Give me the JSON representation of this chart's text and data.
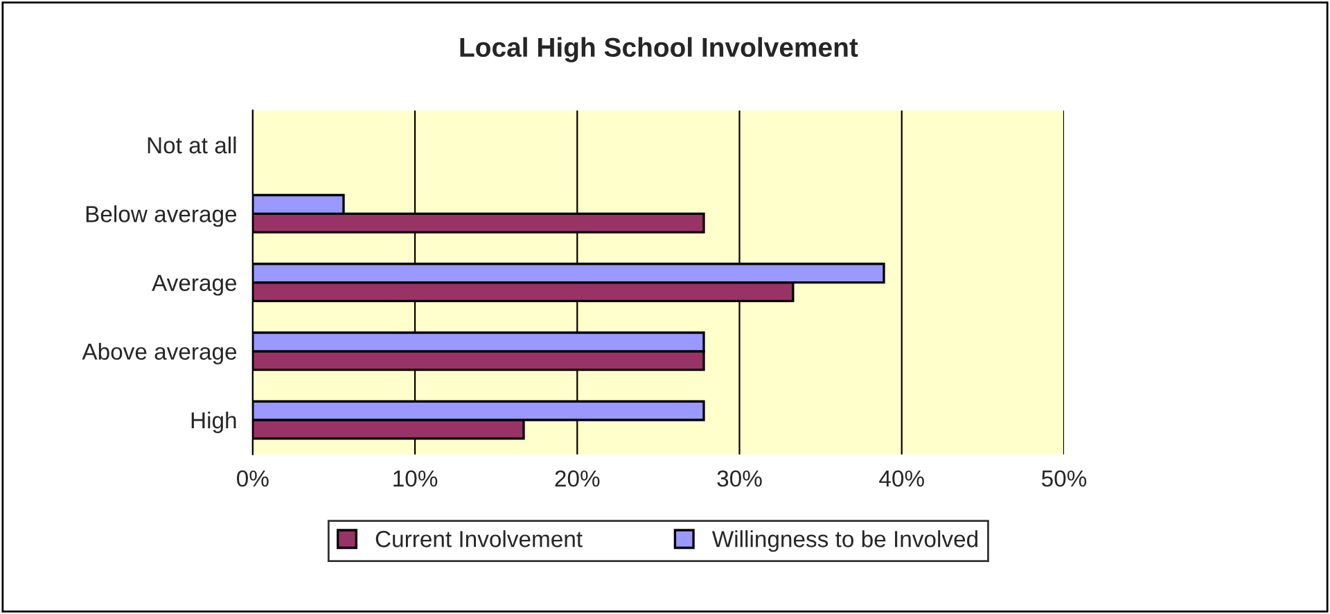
{
  "chart_data": {
    "type": "bar",
    "orientation": "horizontal",
    "title": "Local High School Involvement",
    "categories": [
      "Not at all",
      "Below average",
      "Average",
      "Above average",
      "High"
    ],
    "series": [
      {
        "name": "Current Involvement",
        "color": "#993366",
        "values": [
          null,
          27.8,
          33.3,
          27.8,
          16.7
        ]
      },
      {
        "name": "Willingness to be Involved",
        "color": "#9999ff",
        "values": [
          null,
          5.6,
          38.9,
          27.8,
          27.8
        ]
      }
    ],
    "xlim": [
      0,
      50
    ],
    "xticks": [
      {
        "value": 0,
        "label": "0%"
      },
      {
        "value": 10,
        "label": "10%"
      },
      {
        "value": 20,
        "label": "20%"
      },
      {
        "value": 30,
        "label": "30%"
      },
      {
        "value": 40,
        "label": "40%"
      },
      {
        "value": 50,
        "label": "50%"
      }
    ],
    "grid": "x",
    "legend": "bottom"
  }
}
